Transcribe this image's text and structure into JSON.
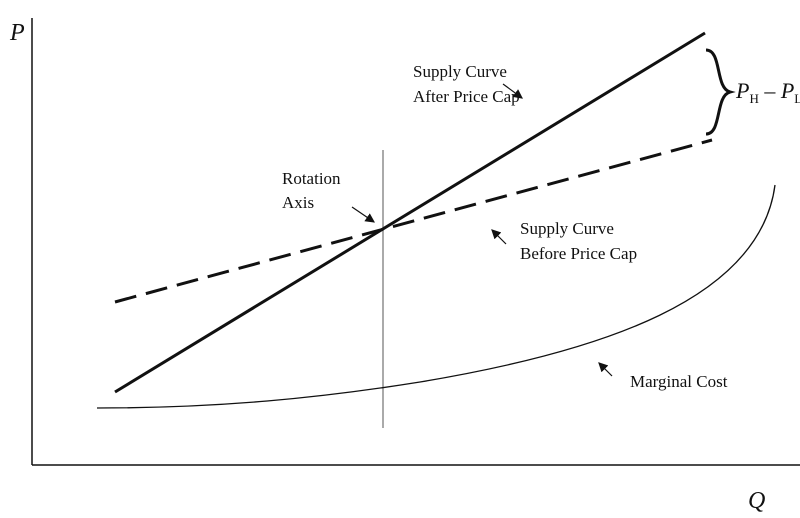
{
  "axes": {
    "y_label": "P",
    "x_label": "Q"
  },
  "annotations": {
    "after_cap": [
      "Supply Curve",
      "After Price Cap"
    ],
    "rotation": [
      "Rotation",
      "Axis"
    ],
    "before_cap": [
      "Supply Curve",
      "Before Price Cap"
    ],
    "marginal_cost": "Marginal Cost",
    "bracket_label": [
      "P",
      "H",
      " – ",
      "P",
      "L"
    ]
  }
}
